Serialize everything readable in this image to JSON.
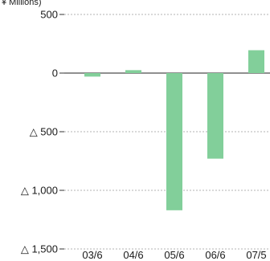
{
  "chart_data": {
    "type": "bar",
    "ylabel": "¥ Millions)",
    "categories": [
      "03/6",
      "04/6",
      "05/6",
      "06/6",
      "07/5"
    ],
    "values": [
      -30,
      25,
      -1170,
      -730,
      195
    ],
    "ylim": [
      -1500,
      500
    ],
    "yticks": [
      500,
      0,
      -500,
      -1000,
      -1500
    ],
    "ytick_labels": [
      "500",
      "0",
      "△ 500",
      "△ 1,000",
      "△ 1,500"
    ],
    "grid": true,
    "colors": {
      "bar": "#82cf9a",
      "grid": "#9a9a9a",
      "axis": "#333333",
      "zero": "#222222"
    }
  }
}
